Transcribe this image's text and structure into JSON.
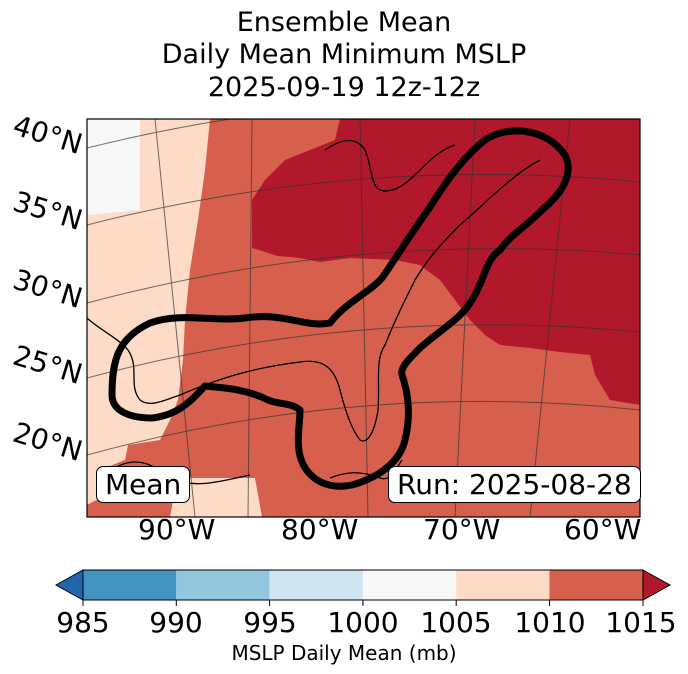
{
  "title": {
    "line1": "Ensemble Mean",
    "line2": "Daily Mean Minimum MSLP",
    "line3": "2025-09-19 12z-12z"
  },
  "map": {
    "lat_labels": [
      "40°N",
      "35°N",
      "30°N",
      "25°N",
      "20°N"
    ],
    "lon_labels": [
      "90°W",
      "80°W",
      "70°W",
      "60°W"
    ],
    "mean_label": "Mean",
    "run_label": "Run: 2025-08-28",
    "colors": {
      "lt1000": "#f7f7f7",
      "c1005": "#fddbc7",
      "c1010": "#d6604d",
      "c1015": "#b2182b",
      "contour": "#000000"
    }
  },
  "colorbar": {
    "ticks": [
      "985",
      "990",
      "995",
      "1000",
      "1005",
      "1010",
      "1015"
    ],
    "label": "MSLP Daily Mean (mb)",
    "colors": [
      "#2166ac",
      "#4393c3",
      "#92c5de",
      "#d1e5f0",
      "#f7f7f7",
      "#fddbc7",
      "#d6604d",
      "#b2182b"
    ]
  }
}
